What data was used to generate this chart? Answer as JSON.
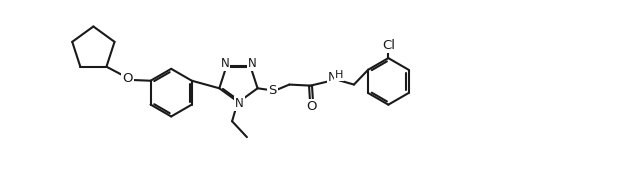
{
  "bg": "#ffffff",
  "lc": "#1a1a1a",
  "lw": 1.5,
  "figsize": [
    6.23,
    1.8
  ],
  "dpi": 100,
  "xlim": [
    -0.5,
    10.5
  ],
  "ylim": [
    -0.2,
    3.2
  ]
}
